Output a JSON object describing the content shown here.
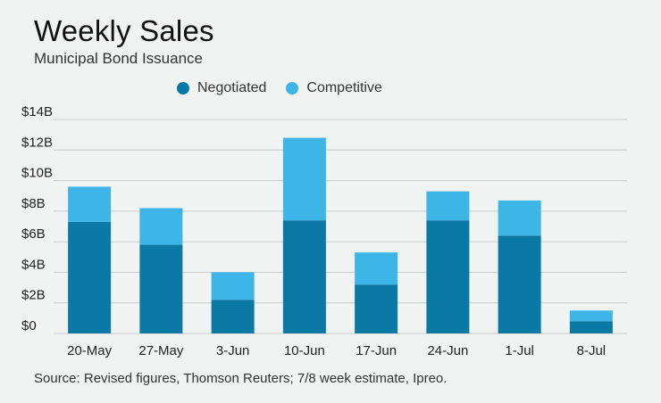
{
  "title": "Weekly Sales",
  "subtitle": "Municipal Bond Issuance",
  "source": "Source: Revised figures, Thomson Reuters; 7/8 week estimate, Ipreo.",
  "colors": {
    "negotiated": "#0a79a6",
    "competitive": "#3db5e6",
    "grid": "#c9cccd",
    "background": "#f1f2f2"
  },
  "chart_data": {
    "type": "bar",
    "stacked": true,
    "title": "Weekly Sales",
    "subtitle": "Municipal Bond Issuance",
    "categories": [
      "20-May",
      "27-May",
      "3-Jun",
      "10-Jun",
      "17-Jun",
      "24-Jun",
      "1-Jul",
      "8-Jul"
    ],
    "series": [
      {
        "name": "Negotiated",
        "color": "#0a79a6",
        "values": [
          7.3,
          5.8,
          2.2,
          7.4,
          3.2,
          7.4,
          6.4,
          0.8
        ]
      },
      {
        "name": "Competitive",
        "color": "#3db5e6",
        "values": [
          2.3,
          2.4,
          1.8,
          5.4,
          2.1,
          1.9,
          2.3,
          0.7
        ]
      }
    ],
    "yticks": [
      "$14B",
      "$12B",
      "$10B",
      "$8B",
      "$6B",
      "$4B",
      "$2B",
      "$0"
    ],
    "ylim": [
      0,
      14
    ],
    "xlabel": "",
    "ylabel": "",
    "grid": true,
    "legend": "top-center"
  }
}
